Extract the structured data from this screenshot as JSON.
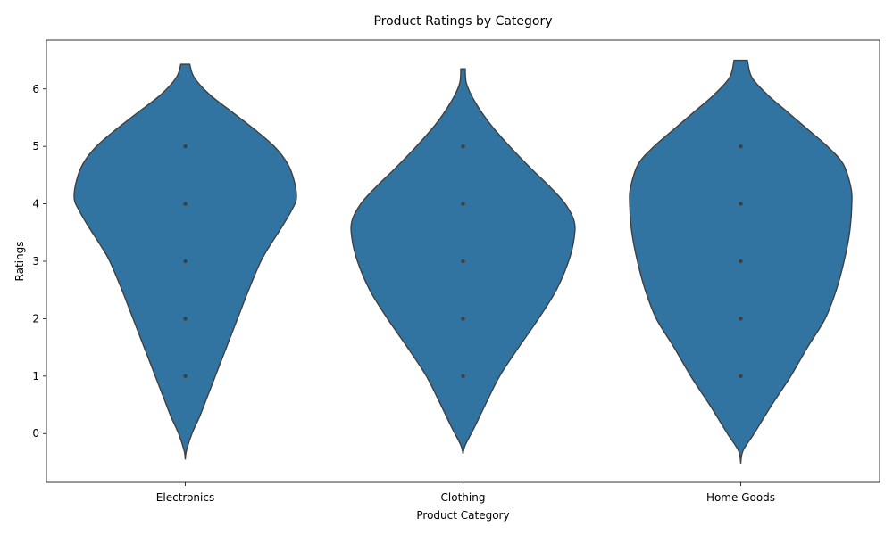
{
  "chart_data": {
    "type": "violin",
    "title": "Product Ratings by Category",
    "xlabel": "Product Category",
    "ylabel": "Ratings",
    "ylim": [
      -0.85,
      6.85
    ],
    "yticks": [
      0,
      1,
      2,
      3,
      4,
      5,
      6
    ],
    "categories": [
      "Electronics",
      "Clothing",
      "Home Goods"
    ],
    "violin_color": "#3274a1",
    "edge_color": "#3f3f3f",
    "point_color": "#3f3f3f",
    "grid": false,
    "series": [
      {
        "category": "Electronics",
        "observed_values": [
          1,
          2,
          3,
          4,
          5
        ],
        "range": [
          -0.45,
          6.43
        ],
        "density_profile": [
          [
            -0.45,
            0.0
          ],
          [
            -0.3,
            0.01
          ],
          [
            0.0,
            0.06
          ],
          [
            0.3,
            0.13
          ],
          [
            0.6,
            0.19
          ],
          [
            1.0,
            0.27
          ],
          [
            1.5,
            0.37
          ],
          [
            2.0,
            0.47
          ],
          [
            2.5,
            0.57
          ],
          [
            3.0,
            0.68
          ],
          [
            3.3,
            0.77
          ],
          [
            3.6,
            0.87
          ],
          [
            3.9,
            0.96
          ],
          [
            4.1,
            1.0
          ],
          [
            4.4,
            0.98
          ],
          [
            4.7,
            0.92
          ],
          [
            5.0,
            0.8
          ],
          [
            5.3,
            0.62
          ],
          [
            5.6,
            0.42
          ],
          [
            5.9,
            0.22
          ],
          [
            6.2,
            0.08
          ],
          [
            6.43,
            0.04
          ]
        ]
      },
      {
        "category": "Clothing",
        "observed_values": [
          1,
          2,
          3,
          4,
          5
        ],
        "range": [
          -0.35,
          6.35
        ],
        "density_profile": [
          [
            -0.35,
            0.0
          ],
          [
            -0.2,
            0.02
          ],
          [
            0.1,
            0.1
          ],
          [
            0.5,
            0.2
          ],
          [
            1.0,
            0.33
          ],
          [
            1.5,
            0.5
          ],
          [
            2.0,
            0.68
          ],
          [
            2.5,
            0.84
          ],
          [
            3.0,
            0.95
          ],
          [
            3.4,
            1.0
          ],
          [
            3.7,
            1.0
          ],
          [
            4.0,
            0.92
          ],
          [
            4.3,
            0.78
          ],
          [
            4.6,
            0.62
          ],
          [
            5.0,
            0.42
          ],
          [
            5.4,
            0.24
          ],
          [
            5.8,
            0.1
          ],
          [
            6.1,
            0.03
          ],
          [
            6.35,
            0.02
          ]
        ]
      },
      {
        "category": "Home Goods",
        "observed_values": [
          1,
          2,
          3,
          4,
          5
        ],
        "range": [
          -0.52,
          6.5
        ],
        "density_profile": [
          [
            -0.52,
            0.0
          ],
          [
            -0.3,
            0.02
          ],
          [
            0.0,
            0.12
          ],
          [
            0.5,
            0.28
          ],
          [
            1.0,
            0.45
          ],
          [
            1.5,
            0.6
          ],
          [
            2.0,
            0.76
          ],
          [
            2.5,
            0.86
          ],
          [
            3.0,
            0.93
          ],
          [
            3.5,
            0.98
          ],
          [
            4.0,
            1.0
          ],
          [
            4.3,
            0.99
          ],
          [
            4.7,
            0.92
          ],
          [
            5.0,
            0.78
          ],
          [
            5.3,
            0.6
          ],
          [
            5.6,
            0.42
          ],
          [
            5.9,
            0.24
          ],
          [
            6.2,
            0.1
          ],
          [
            6.5,
            0.06
          ]
        ]
      }
    ]
  }
}
